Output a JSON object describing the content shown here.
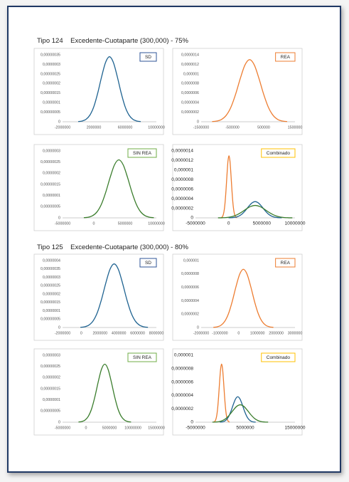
{
  "headings": [
    "Tipo 124    Excedente-Cuotaparte (300,000) - 75%",
    "Tipo 125    Excedente-Cuotaparte (300,000) - 80%"
  ],
  "chart_data": [
    {
      "type": "line",
      "title": "SD",
      "label_color": "#2f5597",
      "xlim": [
        -2000000,
        10000000
      ],
      "xticks": [
        -2000000,
        2000000,
        6000000,
        10000000
      ],
      "ylim": [
        0,
        3.5e-07
      ],
      "yticks": [
        0,
        {
          "value": 5e-08,
          "label": "0,00000005"
        },
        {
          "value": 1e-07,
          "label": "0,0000001"
        },
        {
          "value": 1.5e-07,
          "label": "0,00000015"
        },
        {
          "value": 2e-07,
          "label": "0,0000002"
        },
        {
          "value": 2.5e-07,
          "label": "0,00000025"
        },
        {
          "value": 3e-07,
          "label": "0,0000003"
        },
        {
          "value": 3.5e-07,
          "label": "0,00000035"
        }
      ],
      "series": [
        {
          "color": "#1f6391",
          "x": [
            0,
            500000,
            1000000,
            1500000,
            2000000,
            2500000,
            3000000,
            3500000,
            4000000,
            4500000,
            5000000,
            5500000,
            6000000,
            6500000,
            7000000,
            7500000,
            8000000
          ],
          "values": [
            1e-09,
            3.9e-09,
            1.26e-08,
            3.5e-08,
            7.9e-08,
            1.5e-07,
            2.36e-07,
            3.1e-07,
            3.4e-07,
            3.1e-07,
            2.36e-07,
            1.5e-07,
            7.9e-08,
            3.5e-08,
            1.26e-08,
            3.9e-09,
            1e-09
          ]
        }
      ]
    },
    {
      "type": "line",
      "title": "REA",
      "label_color": "#ed7d31",
      "xlim": [
        -1500000,
        1500000
      ],
      "xticks": [
        -1500000,
        -500000,
        500000,
        1500000
      ],
      "ylim": [
        0,
        1.4e-06
      ],
      "yticks": [
        0,
        {
          "value": 2e-07,
          "label": "0,0000002"
        },
        {
          "value": 4e-07,
          "label": "0,0000004"
        },
        {
          "value": 6e-07,
          "label": "0,0000006"
        },
        {
          "value": 8e-07,
          "label": "0,0000008"
        },
        {
          "value": 1e-06,
          "label": "0,000001"
        },
        {
          "value": 1.2e-06,
          "label": "0,0000012"
        },
        {
          "value": 1.4e-06,
          "label": "0,0000014"
        }
      ],
      "series": [
        {
          "color": "#ed7d31",
          "x": [
            -1150000,
            -1000000,
            -850000,
            -700000,
            -550000,
            -400000,
            -250000,
            -100000,
            50000,
            200000,
            350000,
            500000,
            650000,
            800000,
            950000,
            1100000,
            1250000
          ],
          "values": [
            3.9e-09,
            1.43e-08,
            4.81e-08,
            1.33e-07,
            3.02e-07,
            5.72e-07,
            9.02e-07,
            1.187e-06,
            1.3e-06,
            1.187e-06,
            9.02e-07,
            5.72e-07,
            3.02e-07,
            1.33e-07,
            4.81e-08,
            1.43e-08,
            3.9e-09
          ]
        }
      ]
    },
    {
      "type": "line",
      "title": "SIN REA",
      "label_color": "#70ad47",
      "xlim": [
        -5000000,
        10000000
      ],
      "xticks": [
        -5000000,
        0,
        5000000,
        10000000
      ],
      "ylim": [
        0,
        3e-07
      ],
      "yticks": [
        0,
        {
          "value": 5e-08,
          "label": "0,00000005"
        },
        {
          "value": 1e-07,
          "label": "0,0000001"
        },
        {
          "value": 1.5e-07,
          "label": "0,00000015"
        },
        {
          "value": 2e-07,
          "label": "0,0000002"
        },
        {
          "value": 2.5e-07,
          "label": "0,00000025"
        },
        {
          "value": 3e-07,
          "label": "0,0000003"
        }
      ],
      "series": [
        {
          "color": "#3a7d2c",
          "x": [
            -1600000,
            -900000,
            -200000,
            500000,
            1200000,
            1900000,
            2600000,
            3300000,
            4000000,
            4700000,
            5400000,
            6100000,
            6800000,
            7500000,
            8200000,
            8900000,
            9600000
          ],
          "values": [
            7.8e-10,
            2.9e-09,
            9.6e-09,
            2.65e-08,
            6.03e-08,
            1.144e-07,
            1.804e-07,
            2.374e-07,
            2.6e-07,
            2.374e-07,
            1.804e-07,
            1.144e-07,
            6.03e-08,
            2.65e-08,
            9.6e-09,
            2.9e-09,
            7.8e-10
          ]
        }
      ]
    },
    {
      "type": "line",
      "title": "Combinado",
      "label_color": "#ffc000",
      "xlim": [
        -5000000,
        10000000
      ],
      "xticks": [
        -5000000,
        0,
        5000000,
        10000000
      ],
      "ylim": [
        0,
        1.4e-06
      ],
      "yticks": [
        0,
        {
          "value": 2e-07,
          "label": "0,0000002"
        },
        {
          "value": 4e-07,
          "label": "0,0000004"
        },
        {
          "value": 6e-07,
          "label": "0,0000006"
        },
        {
          "value": 8e-07,
          "label": "0,0000008"
        },
        {
          "value": 1e-06,
          "label": "0,000001"
        },
        {
          "value": 1.2e-06,
          "label": "0,0000012"
        },
        {
          "value": 1.4e-06,
          "label": "0,0000014"
        }
      ],
      "series": [
        {
          "color": "#ed7d31",
          "x": [
            -1150000,
            -1000000,
            -850000,
            -700000,
            -550000,
            -400000,
            -250000,
            -100000,
            50000,
            200000,
            350000,
            500000,
            650000,
            800000,
            950000,
            1100000,
            1250000
          ],
          "values": [
            3.9e-09,
            1.43e-08,
            4.81e-08,
            1.33e-07,
            3.02e-07,
            5.72e-07,
            9.02e-07,
            1.187e-06,
            1.3e-06,
            1.187e-06,
            9.02e-07,
            5.72e-07,
            3.02e-07,
            1.33e-07,
            4.81e-08,
            1.43e-08,
            3.9e-09
          ]
        },
        {
          "color": "#1f6391",
          "x": [
            0,
            500000,
            1000000,
            1500000,
            2000000,
            2500000,
            3000000,
            3500000,
            4000000,
            4500000,
            5000000,
            5500000,
            6000000,
            6500000,
            7000000,
            7500000,
            8000000
          ],
          "values": [
            1e-09,
            3.9e-09,
            1.26e-08,
            3.5e-08,
            7.9e-08,
            1.5e-07,
            2.36e-07,
            3.1e-07,
            3.4e-07,
            3.1e-07,
            2.36e-07,
            1.5e-07,
            7.9e-08,
            3.5e-08,
            1.26e-08,
            3.9e-09,
            1e-09
          ]
        },
        {
          "color": "#3a7d2c",
          "x": [
            -1600000,
            -900000,
            -200000,
            500000,
            1200000,
            1900000,
            2600000,
            3300000,
            4000000,
            4700000,
            5400000,
            6100000,
            6800000,
            7500000,
            8200000,
            8900000,
            9600000
          ],
          "values": [
            7.8e-10,
            2.9e-09,
            9.6e-09,
            2.65e-08,
            6.03e-08,
            1.144e-07,
            1.804e-07,
            2.374e-07,
            2.6e-07,
            2.374e-07,
            1.804e-07,
            1.144e-07,
            6.03e-08,
            2.65e-08,
            9.6e-09,
            2.9e-09,
            7.8e-10
          ]
        }
      ]
    },
    {
      "type": "line",
      "title": "SD",
      "label_color": "#2f5597",
      "xlim": [
        -2000000,
        8000000
      ],
      "xticks": [
        -2000000,
        0,
        2000000,
        4000000,
        6000000,
        8000000
      ],
      "ylim": [
        0,
        4e-07
      ],
      "yticks": [
        0,
        {
          "value": 5e-08,
          "label": "0,00000005"
        },
        {
          "value": 1e-07,
          "label": "0,0000001"
        },
        {
          "value": 1.5e-07,
          "label": "0,00000015"
        },
        {
          "value": 2e-07,
          "label": "0,0000002"
        },
        {
          "value": 2.5e-07,
          "label": "0,00000025"
        },
        {
          "value": 3e-07,
          "label": "0,0000003"
        },
        {
          "value": 3.5e-07,
          "label": "0,00000035"
        },
        {
          "value": 4e-07,
          "label": "0,0000004"
        }
      ],
      "series": [
        {
          "color": "#1f6391",
          "x": [
            -100000,
            350000,
            800000,
            1250000,
            1700000,
            2150000,
            2600000,
            3050000,
            3500000,
            3950000,
            4400000,
            4850000,
            5300000,
            5750000,
            6200000,
            6650000,
            7100000
          ],
          "values": [
            1.14e-09,
            4.18e-09,
            1.41e-08,
            3.88e-08,
            8.82e-08,
            1.672e-07,
            2.637e-07,
            3.469e-07,
            3.8e-07,
            3.469e-07,
            2.637e-07,
            1.672e-07,
            8.82e-08,
            3.88e-08,
            1.41e-08,
            4.18e-09,
            1.14e-09
          ]
        }
      ]
    },
    {
      "type": "line",
      "title": "REA",
      "label_color": "#ed7d31",
      "xlim": [
        -2000000,
        3000000
      ],
      "xticks": [
        -2000000,
        -1000000,
        0,
        1000000,
        2000000,
        3000000
      ],
      "ylim": [
        0,
        1e-06
      ],
      "yticks": [
        0,
        {
          "value": 2e-07,
          "label": "0,0000002"
        },
        {
          "value": 4e-07,
          "label": "0,0000004"
        },
        {
          "value": 6e-07,
          "label": "0,0000006"
        },
        {
          "value": 8e-07,
          "label": "0,0000008"
        },
        {
          "value": 1e-06,
          "label": "0,000001"
        }
      ],
      "series": [
        {
          "color": "#ed7d31",
          "x": [
            -1350000,
            -1150000,
            -950000,
            -750000,
            -550000,
            -350000,
            -150000,
            50000,
            250000,
            450000,
            650000,
            850000,
            1050000,
            1250000,
            1450000,
            1650000,
            1850000
          ],
          "values": [
            2.6e-09,
            9.6e-09,
            3.22e-08,
            8.87e-08,
            2.018e-07,
            3.828e-07,
            6.038e-07,
            7.943e-07,
            8.7e-07,
            7.943e-07,
            6.038e-07,
            3.828e-07,
            2.018e-07,
            8.87e-08,
            3.22e-08,
            9.6e-09,
            2.6e-09
          ]
        }
      ]
    },
    {
      "type": "line",
      "title": "SIN REA",
      "label_color": "#70ad47",
      "xlim": [
        -5000000,
        15000000
      ],
      "xticks": [
        -5000000,
        0,
        5000000,
        10000000,
        15000000
      ],
      "ylim": [
        0,
        3e-07
      ],
      "yticks": [
        0,
        {
          "value": 5e-08,
          "label": "0,00000005"
        },
        {
          "value": 1e-07,
          "label": "0,0000001"
        },
        {
          "value": 1.5e-07,
          "label": "0,00000015"
        },
        {
          "value": 2e-07,
          "label": "0,0000002"
        },
        {
          "value": 2.5e-07,
          "label": "0,00000025"
        },
        {
          "value": 3e-07,
          "label": "0,0000003"
        }
      ],
      "series": [
        {
          "color": "#3a7d2c",
          "x": [
            -1600000,
            -900000,
            -200000,
            500000,
            1200000,
            1900000,
            2600000,
            3300000,
            4000000,
            4700000,
            5400000,
            6100000,
            6800000,
            7500000,
            8200000,
            8900000,
            9600000
          ],
          "values": [
            7.8e-10,
            2.9e-09,
            9.6e-09,
            2.65e-08,
            6.03e-08,
            1.144e-07,
            1.804e-07,
            2.374e-07,
            2.6e-07,
            2.374e-07,
            1.804e-07,
            1.144e-07,
            6.03e-08,
            2.65e-08,
            9.6e-09,
            2.9e-09,
            7.8e-10
          ]
        }
      ]
    },
    {
      "type": "line",
      "title": "Combinado",
      "label_color": "#ffc000",
      "xlim": [
        -5000000,
        15000000
      ],
      "xticks": [
        -5000000,
        5000000,
        15000000
      ],
      "ylim": [
        0,
        1e-06
      ],
      "yticks": [
        0,
        {
          "value": 2e-07,
          "label": "0,0000002"
        },
        {
          "value": 4e-07,
          "label": "0,0000004"
        },
        {
          "value": 6e-07,
          "label": "0,0000006"
        },
        {
          "value": 8e-07,
          "label": "0,0000008"
        },
        {
          "value": 1e-06,
          "label": "0,000001"
        }
      ],
      "series": [
        {
          "color": "#ed7d31",
          "x": [
            -1350000,
            -1150000,
            -950000,
            -750000,
            -550000,
            -350000,
            -150000,
            50000,
            250000,
            450000,
            650000,
            850000,
            1050000,
            1250000,
            1450000,
            1650000,
            1850000
          ],
          "values": [
            2.6e-09,
            9.6e-09,
            3.22e-08,
            8.87e-08,
            2.018e-07,
            3.828e-07,
            6.038e-07,
            7.943e-07,
            8.7e-07,
            7.943e-07,
            6.038e-07,
            3.828e-07,
            2.018e-07,
            8.87e-08,
            3.22e-08,
            9.6e-09,
            2.6e-09
          ]
        },
        {
          "color": "#1f6391",
          "x": [
            -100000,
            350000,
            800000,
            1250000,
            1700000,
            2150000,
            2600000,
            3050000,
            3500000,
            3950000,
            4400000,
            4850000,
            5300000,
            5750000,
            6200000,
            6650000,
            7100000
          ],
          "values": [
            1.14e-09,
            4.18e-09,
            1.41e-08,
            3.88e-08,
            8.82e-08,
            1.672e-07,
            2.637e-07,
            3.469e-07,
            3.8e-07,
            3.469e-07,
            2.637e-07,
            1.672e-07,
            8.82e-08,
            3.88e-08,
            1.41e-08,
            4.18e-09,
            1.14e-09
          ]
        },
        {
          "color": "#3a7d2c",
          "x": [
            -1600000,
            -900000,
            -200000,
            500000,
            1200000,
            1900000,
            2600000,
            3300000,
            4000000,
            4700000,
            5400000,
            6100000,
            6800000,
            7500000,
            8200000,
            8900000,
            9600000
          ],
          "values": [
            7.8e-10,
            2.9e-09,
            9.6e-09,
            2.65e-08,
            6.03e-08,
            1.144e-07,
            1.804e-07,
            2.374e-07,
            2.6e-07,
            2.374e-07,
            1.804e-07,
            1.144e-07,
            6.03e-08,
            2.65e-08,
            9.6e-09,
            2.9e-09,
            7.8e-10
          ]
        }
      ]
    }
  ]
}
